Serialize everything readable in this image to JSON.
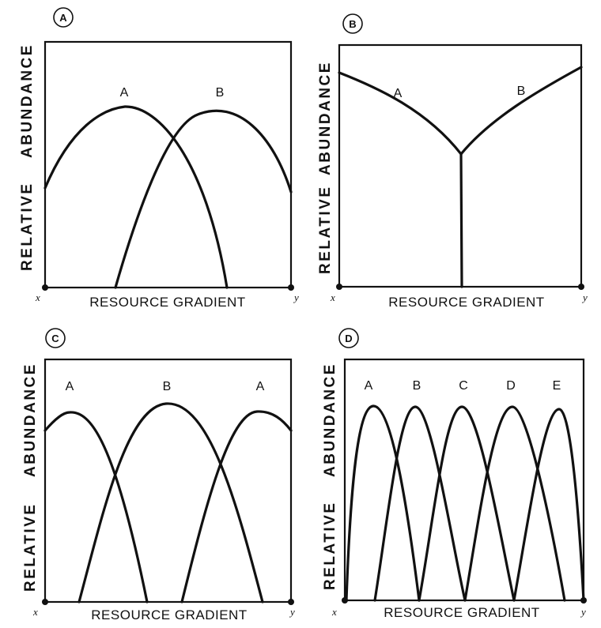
{
  "panels": [
    {
      "badge": "A",
      "y_label_lower": "RELATIVE",
      "y_label_upper": "ABUNDANCE",
      "x_label": "RESOURCE GRADIENT",
      "x_end_left": "x",
      "x_end_right": "y",
      "curve_labels": [
        "A",
        "B"
      ]
    },
    {
      "badge": "B",
      "y_label_lower": "RELATIVE",
      "y_label_upper": "ABUNDANCE",
      "x_label": "RESOURCE  GRADIENT",
      "x_end_left": "x",
      "x_end_right": "y",
      "curve_labels": [
        "A",
        "B"
      ]
    },
    {
      "badge": "C",
      "y_label_lower": "RELATIVE",
      "y_label_upper": "ABUNDANCE",
      "x_label": "RESOURCE  GRADIENT",
      "x_end_left": "x",
      "x_end_right": "y",
      "curve_labels": [
        "A",
        "B",
        "A"
      ]
    },
    {
      "badge": "D",
      "y_label_lower": "RELATIVE",
      "y_label_upper": "ABUNDANCE",
      "x_label": "RESOURCE  GRADIENT",
      "x_end_left": "x",
      "x_end_right": "y",
      "curve_labels": [
        "A",
        "B",
        "C",
        "D",
        "E"
      ]
    }
  ]
}
